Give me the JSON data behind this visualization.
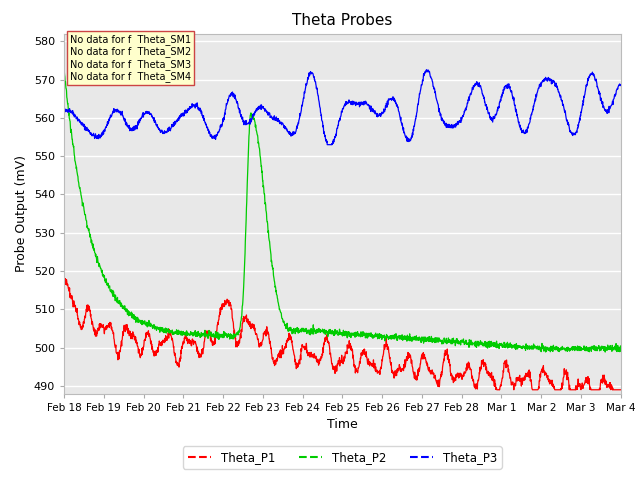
{
  "title": "Theta Probes",
  "xlabel": "Time",
  "ylabel": "Probe Output (mV)",
  "ylim": [
    488,
    582
  ],
  "background_color": "#ffffff",
  "plot_bg_color": "#e8e8e8",
  "grid_color": "#ffffff",
  "colors": {
    "P1": "#ff0000",
    "P2": "#00cc00",
    "P3": "#0000ff"
  },
  "legend_labels": [
    "Theta_P1",
    "Theta_P2",
    "Theta_P3"
  ],
  "annotations": [
    "No data for f  Theta_SM1",
    "No data for f  Theta_SM2",
    "No data for f  Theta_SM3",
    "No data for f  Theta_SM4"
  ],
  "xtick_labels": [
    "Feb 18",
    "Feb 19",
    "Feb 20",
    "Feb 21",
    "Feb 22",
    "Feb 23",
    "Feb 24",
    "Feb 25",
    "Feb 26",
    "Feb 27",
    "Feb 28",
    "Mar 1",
    "Mar 2",
    "Mar 3",
    "Mar 4"
  ],
  "ytick_values": [
    490,
    500,
    510,
    520,
    530,
    540,
    550,
    560,
    570,
    580
  ],
  "figsize": [
    6.4,
    4.8
  ],
  "dpi": 100
}
